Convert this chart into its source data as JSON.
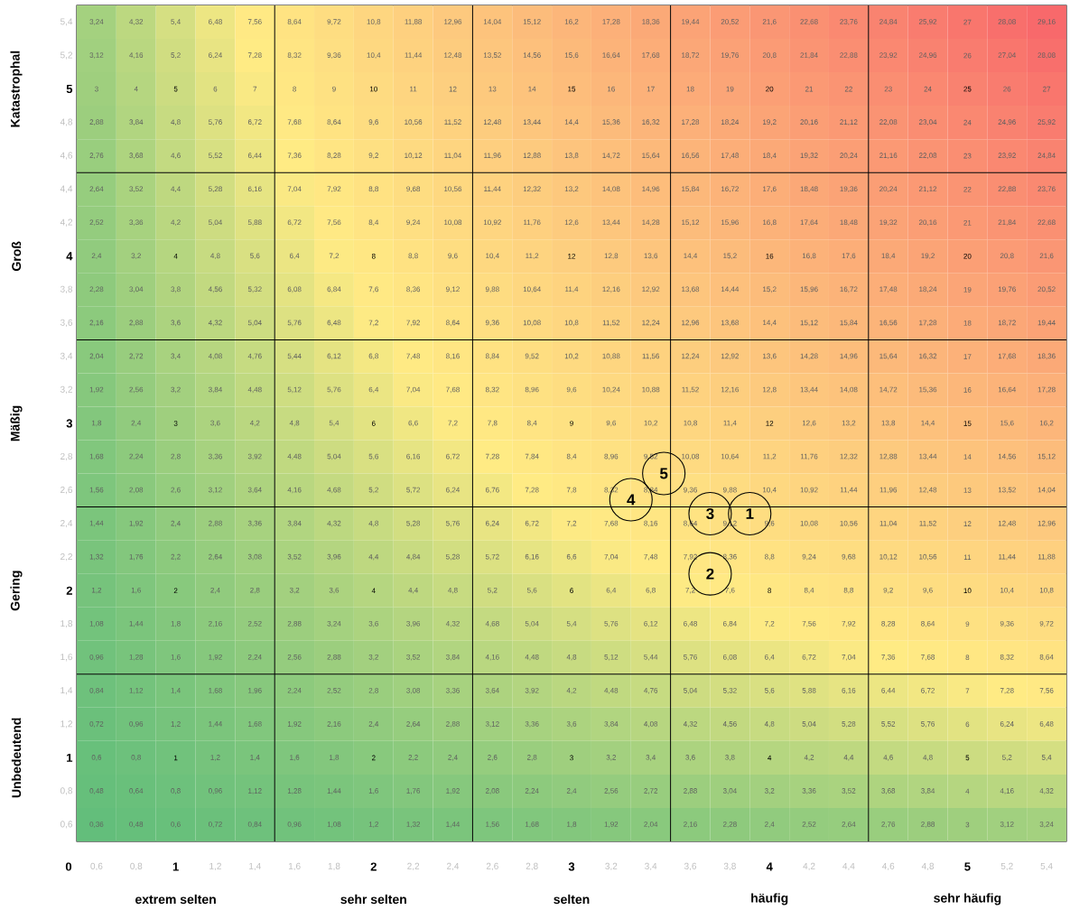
{
  "chart_data": {
    "type": "heatmap",
    "categories": [
      "0,6",
      "0,8",
      "1",
      "1,2",
      "1,4",
      "1,6",
      "1,8",
      "2",
      "2,2",
      "2,4",
      "2,6",
      "2,8",
      "3",
      "3,2",
      "3,4",
      "3,6",
      "3,8",
      "4",
      "4,2",
      "4,4",
      "4,6",
      "4,8",
      "5",
      "5,2",
      "5,4"
    ],
    "y_categories": [
      "5,4",
      "5,2",
      "5",
      "4,8",
      "4,6",
      "4,4",
      "4,2",
      "4",
      "3,8",
      "3,6",
      "3,4",
      "3,2",
      "3",
      "2,8",
      "2,6",
      "2,4",
      "2,2",
      "2",
      "1,8",
      "1,6",
      "1,4",
      "1,2",
      "1",
      "0,8",
      "0,6"
    ],
    "cells": [
      [
        3.24,
        4.32,
        5.4,
        6.48,
        7.56,
        8.64,
        9.72,
        10.8,
        11.88,
        12.96,
        14.04,
        15.12,
        16.2,
        17.28,
        18.36,
        19.44,
        20.52,
        21.6,
        22.68,
        23.76,
        24.84,
        25.92,
        27,
        28.08,
        29.16
      ],
      [
        3.12,
        4.16,
        5.2,
        6.24,
        7.28,
        8.32,
        9.36,
        10.4,
        11.44,
        12.48,
        13.52,
        14.56,
        15.6,
        16.64,
        17.68,
        18.72,
        19.76,
        20.8,
        21.84,
        22.88,
        23.92,
        24.96,
        26,
        27.04,
        28.08
      ],
      [
        3,
        4,
        5,
        6,
        7,
        8,
        9,
        10,
        11,
        12,
        13,
        14,
        15,
        16,
        17,
        18,
        19,
        20,
        21,
        22,
        23,
        24,
        25,
        26,
        27
      ],
      [
        2.88,
        3.84,
        4.8,
        5.76,
        6.72,
        7.68,
        8.64,
        9.6,
        10.56,
        11.52,
        12.48,
        13.44,
        14.4,
        15.36,
        16.32,
        17.28,
        18.24,
        19.2,
        20.16,
        21.12,
        22.08,
        23.04,
        24,
        24.96,
        25.92
      ],
      [
        2.76,
        3.68,
        4.6,
        5.52,
        6.44,
        7.36,
        8.28,
        9.2,
        10.12,
        11.04,
        11.96,
        12.88,
        13.8,
        14.72,
        15.64,
        16.56,
        17.48,
        18.4,
        19.32,
        20.24,
        21.16,
        22.08,
        23,
        23.92,
        24.84
      ],
      [
        2.64,
        3.52,
        4.4,
        5.28,
        6.16,
        7.04,
        7.92,
        8.8,
        9.68,
        10.56,
        11.44,
        12.32,
        13.2,
        14.08,
        14.96,
        15.84,
        16.72,
        17.6,
        18.48,
        19.36,
        20.24,
        21.12,
        22,
        22.88,
        23.76
      ],
      [
        2.52,
        3.36,
        4.2,
        5.04,
        5.88,
        6.72,
        7.56,
        8.4,
        9.24,
        10.08,
        10.92,
        11.76,
        12.6,
        13.44,
        14.28,
        15.12,
        15.96,
        16.8,
        17.64,
        18.48,
        19.32,
        20.16,
        21,
        21.84,
        22.68
      ],
      [
        2.4,
        3.2,
        4,
        4.8,
        5.6,
        6.4,
        7.2,
        8,
        8.8,
        9.6,
        10.4,
        11.2,
        12,
        12.8,
        13.6,
        14.4,
        15.2,
        16,
        16.8,
        17.6,
        18.4,
        19.2,
        20,
        20.8,
        21.6
      ],
      [
        2.28,
        3.04,
        3.8,
        4.56,
        5.32,
        6.08,
        6.84,
        7.6,
        8.36,
        9.12,
        9.88,
        10.64,
        11.4,
        12.16,
        12.92,
        13.68,
        14.44,
        15.2,
        15.96,
        16.72,
        17.48,
        18.24,
        19,
        19.76,
        20.52
      ],
      [
        2.16,
        2.88,
        3.6,
        4.32,
        5.04,
        5.76,
        6.48,
        7.2,
        7.92,
        8.64,
        9.36,
        10.08,
        10.8,
        11.52,
        12.24,
        12.96,
        13.68,
        14.4,
        15.12,
        15.84,
        16.56,
        17.28,
        18,
        18.72,
        19.44
      ],
      [
        2.04,
        2.72,
        3.4,
        4.08,
        4.76,
        5.44,
        6.12,
        6.8,
        7.48,
        8.16,
        8.84,
        9.52,
        10.2,
        10.88,
        11.56,
        12.24,
        12.92,
        13.6,
        14.28,
        14.96,
        15.64,
        16.32,
        17,
        17.68,
        18.36
      ],
      [
        1.92,
        2.56,
        3.2,
        3.84,
        4.48,
        5.12,
        5.76,
        6.4,
        7.04,
        7.68,
        8.32,
        8.96,
        9.6,
        10.24,
        10.88,
        11.52,
        12.16,
        12.8,
        13.44,
        14.08,
        14.72,
        15.36,
        16,
        16.64,
        17.28
      ],
      [
        1.8,
        2.4,
        3,
        3.6,
        4.2,
        4.8,
        5.4,
        6,
        6.6,
        7.2,
        7.8,
        8.4,
        9,
        9.6,
        10.2,
        10.8,
        11.4,
        12,
        12.6,
        13.2,
        13.8,
        14.4,
        15,
        15.6,
        16.2
      ],
      [
        1.68,
        2.24,
        2.8,
        3.36,
        3.92,
        4.48,
        5.04,
        5.6,
        6.16,
        6.72,
        7.28,
        7.84,
        8.4,
        8.96,
        9.52,
        10.08,
        10.64,
        11.2,
        11.76,
        12.32,
        12.88,
        13.44,
        14,
        14.56,
        15.12
      ],
      [
        1.56,
        2.08,
        2.6,
        3.12,
        3.64,
        4.16,
        4.68,
        5.2,
        5.72,
        6.24,
        6.76,
        7.28,
        7.8,
        8.32,
        8.84,
        9.36,
        9.88,
        10.4,
        10.92,
        11.44,
        11.96,
        12.48,
        13,
        13.52,
        14.04
      ],
      [
        1.44,
        1.92,
        2.4,
        2.88,
        3.36,
        3.84,
        4.32,
        4.8,
        5.28,
        5.76,
        6.24,
        6.72,
        7.2,
        7.68,
        8.16,
        8.64,
        9.12,
        9.6,
        10.08,
        10.56,
        11.04,
        11.52,
        12,
        12.48,
        12.96
      ],
      [
        1.32,
        1.76,
        2.2,
        2.64,
        3.08,
        3.52,
        3.96,
        4.4,
        4.84,
        5.28,
        5.72,
        6.16,
        6.6,
        7.04,
        7.48,
        7.92,
        8.36,
        8.8,
        9.24,
        9.68,
        10.12,
        10.56,
        11,
        11.44,
        11.88
      ],
      [
        1.2,
        1.6,
        2,
        2.4,
        2.8,
        3.2,
        3.6,
        4,
        4.4,
        4.8,
        5.2,
        5.6,
        6,
        6.4,
        6.8,
        7.2,
        7.6,
        8,
        8.4,
        8.8,
        9.2,
        9.6,
        10,
        10.4,
        10.8
      ],
      [
        1.08,
        1.44,
        1.8,
        2.16,
        2.52,
        2.88,
        3.24,
        3.6,
        3.96,
        4.32,
        4.68,
        5.04,
        5.4,
        5.76,
        6.12,
        6.48,
        6.84,
        7.2,
        7.56,
        7.92,
        8.28,
        8.64,
        9,
        9.36,
        9.72
      ],
      [
        0.96,
        1.28,
        1.6,
        1.92,
        2.24,
        2.56,
        2.88,
        3.2,
        3.52,
        3.84,
        4.16,
        4.48,
        4.8,
        5.12,
        5.44,
        5.76,
        6.08,
        6.4,
        6.72,
        7.04,
        7.36,
        7.68,
        8,
        8.32,
        8.64
      ],
      [
        0.84,
        1.12,
        1.4,
        1.68,
        1.96,
        2.24,
        2.52,
        2.8,
        3.08,
        3.36,
        3.64,
        3.92,
        4.2,
        4.48,
        4.76,
        5.04,
        5.32,
        5.6,
        5.88,
        6.16,
        6.44,
        6.72,
        7,
        7.28,
        7.56
      ],
      [
        0.72,
        0.96,
        1.2,
        1.44,
        1.68,
        1.92,
        2.16,
        2.4,
        2.64,
        2.88,
        3.12,
        3.36,
        3.6,
        3.84,
        4.08,
        4.32,
        4.56,
        4.8,
        5.04,
        5.28,
        5.52,
        5.76,
        6,
        6.24,
        6.48
      ],
      [
        0.6,
        0.8,
        1,
        1.2,
        1.4,
        1.6,
        1.8,
        2,
        2.2,
        2.4,
        2.6,
        2.8,
        3,
        3.2,
        3.4,
        3.6,
        3.8,
        4,
        4.2,
        4.4,
        4.6,
        4.8,
        5,
        5.2,
        5.4
      ],
      [
        0.48,
        0.64,
        0.8,
        0.96,
        1.12,
        1.28,
        1.44,
        1.6,
        1.76,
        1.92,
        2.08,
        2.24,
        2.4,
        2.56,
        2.72,
        2.88,
        3.04,
        3.2,
        3.36,
        3.52,
        3.68,
        3.84,
        4,
        4.16,
        4.32
      ],
      [
        0.36,
        0.48,
        0.6,
        0.72,
        0.84,
        0.96,
        1.08,
        1.2,
        1.32,
        1.44,
        1.56,
        1.68,
        1.8,
        1.92,
        2.04,
        2.16,
        2.28,
        2.4,
        2.52,
        2.64,
        2.76,
        2.88,
        3,
        3.12,
        3.24
      ]
    ],
    "cell_labels": [
      [
        "3,24",
        "4,32",
        "5,4",
        "6,48",
        "7,56",
        "8,64",
        "9,72",
        "10,8",
        "11,88",
        "12,96",
        "14,04",
        "15,12",
        "16,2",
        "17,28",
        "18,36",
        "19,44",
        "20,52",
        "21,6",
        "22,68",
        "23,76",
        "24,84",
        "25,92",
        "27",
        "28,08",
        "29,16"
      ],
      [
        "3,12",
        "4,16",
        "5,2",
        "6,24",
        "7,28",
        "8,32",
        "9,36",
        "10,4",
        "11,44",
        "12,48",
        "13,52",
        "14,56",
        "15,6",
        "16,64",
        "17,68",
        "18,72",
        "19,76",
        "20,8",
        "21,84",
        "22,88",
        "23,92",
        "24,96",
        "26",
        "27,04",
        "28,08"
      ],
      [
        "3",
        "4",
        "5",
        "6",
        "7",
        "8",
        "9",
        "10",
        "11",
        "12",
        "13",
        "14",
        "15",
        "16",
        "17",
        "18",
        "19",
        "20",
        "21",
        "22",
        "23",
        "24",
        "25",
        "26",
        "27"
      ],
      [
        "2,88",
        "3,84",
        "4,8",
        "5,76",
        "6,72",
        "7,68",
        "8,64",
        "9,6",
        "10,56",
        "11,52",
        "12,48",
        "13,44",
        "14,4",
        "15,36",
        "16,32",
        "17,28",
        "18,24",
        "19,2",
        "20,16",
        "21,12",
        "22,08",
        "23,04",
        "24",
        "24,96",
        "25,92"
      ],
      [
        "2,76",
        "3,68",
        "4,6",
        "5,52",
        "6,44",
        "7,36",
        "8,28",
        "9,2",
        "10,12",
        "11,04",
        "11,96",
        "12,88",
        "13,8",
        "14,72",
        "15,64",
        "16,56",
        "17,48",
        "18,4",
        "19,32",
        "20,24",
        "21,16",
        "22,08",
        "23",
        "23,92",
        "24,84"
      ],
      [
        "2,64",
        "3,52",
        "4,4",
        "5,28",
        "6,16",
        "7,04",
        "7,92",
        "8,8",
        "9,68",
        "10,56",
        "11,44",
        "12,32",
        "13,2",
        "14,08",
        "14,96",
        "15,84",
        "16,72",
        "17,6",
        "18,48",
        "19,36",
        "20,24",
        "21,12",
        "22",
        "22,88",
        "23,76"
      ],
      [
        "2,52",
        "3,36",
        "4,2",
        "5,04",
        "5,88",
        "6,72",
        "7,56",
        "8,4",
        "9,24",
        "10,08",
        "10,92",
        "11,76",
        "12,6",
        "13,44",
        "14,28",
        "15,12",
        "15,96",
        "16,8",
        "17,64",
        "18,48",
        "19,32",
        "20,16",
        "21",
        "21,84",
        "22,68"
      ],
      [
        "2,4",
        "3,2",
        "4",
        "4,8",
        "5,6",
        "6,4",
        "7,2",
        "8",
        "8,8",
        "9,6",
        "10,4",
        "11,2",
        "12",
        "12,8",
        "13,6",
        "14,4",
        "15,2",
        "16",
        "16,8",
        "17,6",
        "18,4",
        "19,2",
        "20",
        "20,8",
        "21,6"
      ],
      [
        "2,28",
        "3,04",
        "3,8",
        "4,56",
        "5,32",
        "6,08",
        "6,84",
        "7,6",
        "8,36",
        "9,12",
        "9,88",
        "10,64",
        "11,4",
        "12,16",
        "12,92",
        "13,68",
        "14,44",
        "15,2",
        "15,96",
        "16,72",
        "17,48",
        "18,24",
        "19",
        "19,76",
        "20,52"
      ],
      [
        "2,16",
        "2,88",
        "3,6",
        "4,32",
        "5,04",
        "5,76",
        "6,48",
        "7,2",
        "7,92",
        "8,64",
        "9,36",
        "10,08",
        "10,8",
        "11,52",
        "12,24",
        "12,96",
        "13,68",
        "14,4",
        "15,12",
        "15,84",
        "16,56",
        "17,28",
        "18",
        "18,72",
        "19,44"
      ],
      [
        "2,04",
        "2,72",
        "3,4",
        "4,08",
        "4,76",
        "5,44",
        "6,12",
        "6,8",
        "7,48",
        "8,16",
        "8,84",
        "9,52",
        "10,2",
        "10,88",
        "11,56",
        "12,24",
        "12,92",
        "13,6",
        "14,28",
        "14,96",
        "15,64",
        "16,32",
        "17",
        "17,68",
        "18,36"
      ],
      [
        "1,92",
        "2,56",
        "3,2",
        "3,84",
        "4,48",
        "5,12",
        "5,76",
        "6,4",
        "7,04",
        "7,68",
        "8,32",
        "8,96",
        "9,6",
        "10,24",
        "10,88",
        "11,52",
        "12,16",
        "12,8",
        "13,44",
        "14,08",
        "14,72",
        "15,36",
        "16",
        "16,64",
        "17,28"
      ],
      [
        "1,8",
        "2,4",
        "3",
        "3,6",
        "4,2",
        "4,8",
        "5,4",
        "6",
        "6,6",
        "7,2",
        "7,8",
        "8,4",
        "9",
        "9,6",
        "10,2",
        "10,8",
        "11,4",
        "12",
        "12,6",
        "13,2",
        "13,8",
        "14,4",
        "15",
        "15,6",
        "16,2"
      ],
      [
        "1,68",
        "2,24",
        "2,8",
        "3,36",
        "3,92",
        "4,48",
        "5,04",
        "5,6",
        "6,16",
        "6,72",
        "7,28",
        "7,84",
        "8,4",
        "8,96",
        "9,52",
        "10,08",
        "10,64",
        "11,2",
        "11,76",
        "12,32",
        "12,88",
        "13,44",
        "14",
        "14,56",
        "15,12"
      ],
      [
        "1,56",
        "2,08",
        "2,6",
        "3,12",
        "3,64",
        "4,16",
        "4,68",
        "5,2",
        "5,72",
        "6,24",
        "6,76",
        "7,28",
        "7,8",
        "8,32",
        "8,84",
        "9,36",
        "9,88",
        "10,4",
        "10,92",
        "11,44",
        "11,96",
        "12,48",
        "13",
        "13,52",
        "14,04"
      ],
      [
        "1,44",
        "1,92",
        "2,4",
        "2,88",
        "3,36",
        "3,84",
        "4,32",
        "4,8",
        "5,28",
        "5,76",
        "6,24",
        "6,72",
        "7,2",
        "7,68",
        "8,16",
        "8,64",
        "9,12",
        "9,6",
        "10,08",
        "10,56",
        "11,04",
        "11,52",
        "12",
        "12,48",
        "12,96"
      ],
      [
        "1,32",
        "1,76",
        "2,2",
        "2,64",
        "3,08",
        "3,52",
        "3,96",
        "4,4",
        "4,84",
        "5,28",
        "5,72",
        "6,16",
        "6,6",
        "7,04",
        "7,48",
        "7,92",
        "8,36",
        "8,8",
        "9,24",
        "9,68",
        "10,12",
        "10,56",
        "11",
        "11,44",
        "11,88"
      ],
      [
        "1,2",
        "1,6",
        "2",
        "2,4",
        "2,8",
        "3,2",
        "3,6",
        "4",
        "4,4",
        "4,8",
        "5,2",
        "5,6",
        "6",
        "6,4",
        "6,8",
        "7,2",
        "7,6",
        "8",
        "8,4",
        "8,8",
        "9,2",
        "9,6",
        "10",
        "10,4",
        "10,8"
      ],
      [
        "1,08",
        "1,44",
        "1,8",
        "2,16",
        "2,52",
        "2,88",
        "3,24",
        "3,6",
        "3,96",
        "4,32",
        "4,68",
        "5,04",
        "5,4",
        "5,76",
        "6,12",
        "6,48",
        "6,84",
        "7,2",
        "7,56",
        "7,92",
        "8,28",
        "8,64",
        "9",
        "9,36",
        "9,72"
      ],
      [
        "0,96",
        "1,28",
        "1,6",
        "1,92",
        "2,24",
        "2,56",
        "2,88",
        "3,2",
        "3,52",
        "3,84",
        "4,16",
        "4,48",
        "4,8",
        "5,12",
        "5,44",
        "5,76",
        "6,08",
        "6,4",
        "6,72",
        "7,04",
        "7,36",
        "7,68",
        "8",
        "8,32",
        "8,64"
      ],
      [
        "0,84",
        "1,12",
        "1,4",
        "1,68",
        "1,96",
        "2,24",
        "2,52",
        "2,8",
        "3,08",
        "3,36",
        "3,64",
        "3,92",
        "4,2",
        "4,48",
        "4,76",
        "5,04",
        "5,32",
        "5,6",
        "5,88",
        "6,16",
        "6,44",
        "6,72",
        "7",
        "7,28",
        "7,56"
      ],
      [
        "0,72",
        "0,96",
        "1,2",
        "1,44",
        "1,68",
        "1,92",
        "2,16",
        "2,4",
        "2,64",
        "2,88",
        "3,12",
        "3,36",
        "3,6",
        "3,84",
        "4,08",
        "4,32",
        "4,56",
        "4,8",
        "5,04",
        "5,28",
        "5,52",
        "5,76",
        "6",
        "6,24",
        "6,48"
      ],
      [
        "0,6",
        "0,8",
        "1",
        "1,2",
        "1,4",
        "1,6",
        "1,8",
        "2",
        "2,2",
        "2,4",
        "2,6",
        "2,8",
        "3",
        "3,2",
        "3,4",
        "3,6",
        "3,8",
        "4",
        "4,2",
        "4,4",
        "4,6",
        "4,8",
        "5",
        "5,2",
        "5,4"
      ],
      [
        "0,48",
        "0,64",
        "0,8",
        "0,96",
        "1,12",
        "1,28",
        "1,44",
        "1,6",
        "1,76",
        "1,92",
        "2,08",
        "2,24",
        "2,4",
        "2,56",
        "2,72",
        "2,88",
        "3,04",
        "3,2",
        "3,36",
        "3,52",
        "3,68",
        "3,84",
        "4",
        "4,16",
        "4,32"
      ],
      [
        "0,36",
        "0,48",
        "0,6",
        "0,72",
        "0,84",
        "0,96",
        "1,08",
        "1,2",
        "1,32",
        "1,44",
        "1,56",
        "1,68",
        "1,8",
        "1,92",
        "2,04",
        "2,16",
        "2,28",
        "2,4",
        "2,52",
        "2,64",
        "2,76",
        "2,88",
        "3",
        "3,12",
        "3,24"
      ]
    ],
    "annotations": [
      "0",
      "extrem selten",
      "sehr selten",
      "selten",
      "häufig",
      "sehr häufig",
      "Katastrophal",
      "Groß",
      "Mäßig",
      "Gering",
      "Unbedeutend",
      "1",
      "2",
      "3",
      "4",
      "5"
    ]
  }
}
